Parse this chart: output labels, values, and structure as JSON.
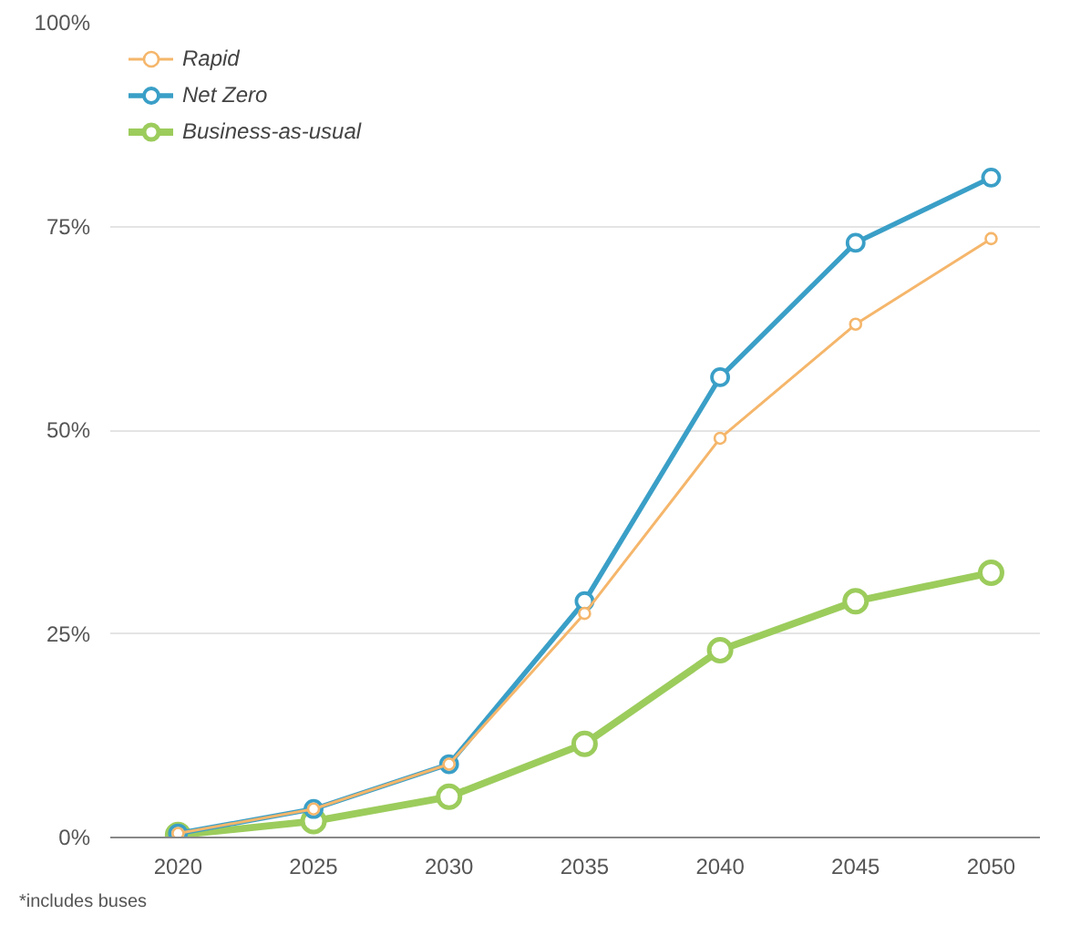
{
  "chart_data": {
    "type": "line",
    "x": [
      2020,
      2025,
      2030,
      2035,
      2040,
      2045,
      2050
    ],
    "series": [
      {
        "name": "Rapid",
        "color": "#f5b66b",
        "values": [
          0.5,
          3.5,
          9,
          27.5,
          49,
          63,
          73.5
        ]
      },
      {
        "name": "Net Zero",
        "color": "#3a9fc7",
        "values": [
          0.5,
          3.5,
          9,
          29,
          56.5,
          73,
          81
        ]
      },
      {
        "name": "Business-as-usual",
        "color": "#9ccc5c",
        "values": [
          0.3,
          2,
          5,
          11.5,
          23,
          29,
          32.5
        ]
      }
    ],
    "xlim": [
      2017.5,
      2051.8
    ],
    "ylim": [
      0,
      100
    ],
    "xticks": [
      2020,
      2025,
      2030,
      2035,
      2040,
      2045,
      2050
    ],
    "yticks": [
      {
        "value": 0,
        "label": "0%"
      },
      {
        "value": 25,
        "label": "25%"
      },
      {
        "value": 50,
        "label": "50%"
      },
      {
        "value": 75,
        "label": "75%"
      },
      {
        "value": 100,
        "label": "100%"
      }
    ],
    "grid": "y",
    "legend": "top left",
    "marker": "circle",
    "line_style": "solid",
    "annotations": [
      "*includes buses"
    ]
  }
}
